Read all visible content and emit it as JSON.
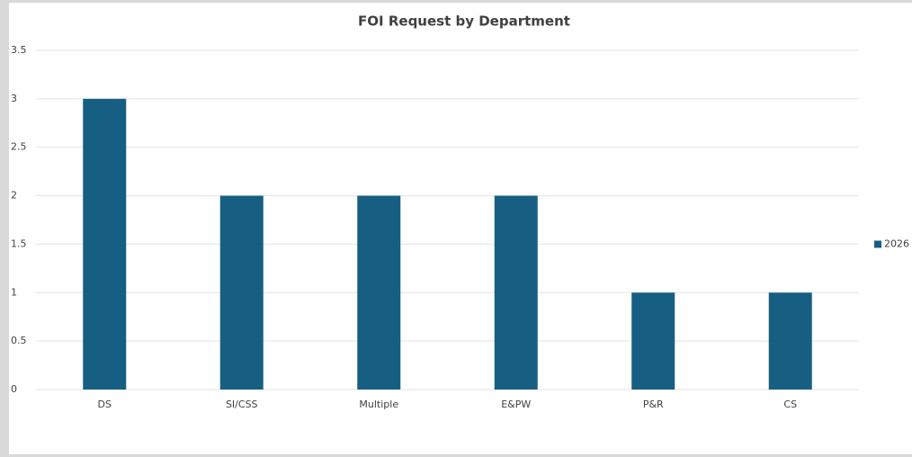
{
  "chart_data": {
    "type": "bar",
    "title": "FOI Request by Department",
    "categories": [
      "DS",
      "SI/CSS",
      "Multiple",
      "E&PW",
      "P&R",
      "CS"
    ],
    "series": [
      {
        "name": "2026",
        "color": "#175f82",
        "values": [
          3,
          2,
          2,
          2,
          1,
          1
        ]
      }
    ],
    "ylim": [
      0,
      3.5
    ],
    "yticks": [
      0,
      0.5,
      1,
      1.5,
      2,
      2.5,
      3,
      3.5
    ],
    "grid": true,
    "legend": "right"
  }
}
